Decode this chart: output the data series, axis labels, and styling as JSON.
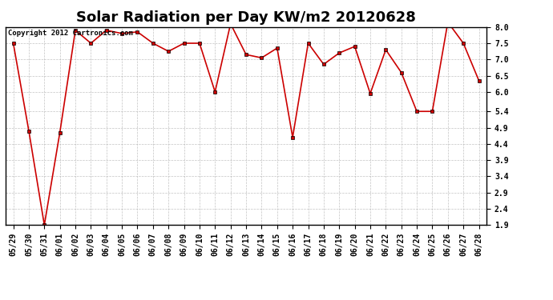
{
  "title": "Solar Radiation per Day KW/m2 20120628",
  "copyright_text": "Copyright 2012 Cartronics.com",
  "dates": [
    "05/29",
    "05/30",
    "05/31",
    "06/01",
    "06/02",
    "06/03",
    "06/04",
    "06/05",
    "06/06",
    "06/07",
    "06/08",
    "06/09",
    "06/10",
    "06/11",
    "06/12",
    "06/13",
    "06/14",
    "06/15",
    "06/16",
    "06/17",
    "06/18",
    "06/19",
    "06/20",
    "06/21",
    "06/22",
    "06/23",
    "06/24",
    "06/25",
    "06/26",
    "06/27",
    "06/28"
  ],
  "values": [
    7.5,
    4.8,
    1.9,
    4.75,
    7.9,
    7.5,
    7.9,
    7.8,
    7.85,
    7.5,
    7.25,
    7.5,
    7.5,
    6.0,
    8.1,
    7.15,
    7.05,
    7.35,
    4.6,
    7.5,
    6.85,
    7.2,
    7.4,
    5.95,
    7.3,
    6.6,
    5.4,
    5.4,
    8.15,
    7.5,
    6.35
  ],
  "line_color": "#cc0000",
  "marker": "s",
  "marker_size": 3,
  "bg_color": "#ffffff",
  "grid_color": "#aaaaaa",
  "ylim_min": 1.9,
  "ylim_max": 8.0,
  "yticks": [
    1.9,
    2.4,
    2.9,
    3.4,
    3.9,
    4.4,
    4.9,
    5.4,
    6.0,
    6.5,
    7.0,
    7.5,
    8.0
  ],
  "title_fontsize": 13,
  "tick_fontsize": 7,
  "copyright_fontsize": 6.5
}
